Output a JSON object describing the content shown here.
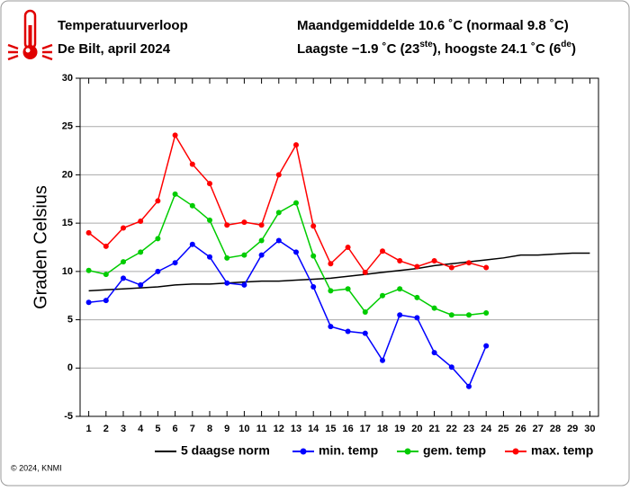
{
  "chart_data": {
    "type": "line",
    "title": "Temperatuurverloop",
    "subtitle": "De Bilt, april 2024",
    "summary_line1": "Maandgemiddelde 10.6 ˚C (normaal 9.8 ˚C)",
    "summary_line2": [
      "Laagste −1.9 ˚C (23",
      "ste",
      "), hoogste 24.1 ˚C (6",
      "de",
      ")"
    ],
    "ylabel": "Graden Celsius",
    "footer": "© 2024, KNMI",
    "x": [
      1,
      2,
      3,
      4,
      5,
      6,
      7,
      8,
      9,
      10,
      11,
      12,
      13,
      14,
      15,
      16,
      17,
      18,
      19,
      20,
      21,
      22,
      23,
      24,
      25,
      26,
      27,
      28,
      29,
      30
    ],
    "xlim": [
      0.5,
      30.5
    ],
    "xticks": [
      1,
      2,
      3,
      4,
      5,
      6,
      7,
      8,
      9,
      10,
      11,
      12,
      13,
      14,
      15,
      16,
      17,
      18,
      19,
      20,
      21,
      22,
      23,
      24,
      25,
      26,
      27,
      28,
      29,
      30
    ],
    "ylim": [
      -5,
      30
    ],
    "yticks": [
      -5,
      0,
      5,
      10,
      15,
      20,
      25,
      30
    ],
    "grid": true,
    "series": [
      {
        "name": "5 daagse norm",
        "color": "#000000",
        "markers": false,
        "values": [
          8.0,
          8.1,
          8.2,
          8.3,
          8.4,
          8.6,
          8.7,
          8.7,
          8.8,
          8.9,
          9.0,
          9.0,
          9.1,
          9.2,
          9.3,
          9.5,
          9.7,
          9.9,
          10.1,
          10.3,
          10.6,
          10.8,
          11.0,
          11.2,
          11.4,
          11.7,
          11.7,
          11.8,
          11.9,
          11.9
        ]
      },
      {
        "name": "min. temp",
        "color": "#0000ff",
        "markers": true,
        "values": [
          6.8,
          7.0,
          9.3,
          8.6,
          10.0,
          10.9,
          12.8,
          11.5,
          8.8,
          8.6,
          11.7,
          13.2,
          12.0,
          8.4,
          4.3,
          3.8,
          3.6,
          0.8,
          5.5,
          5.2,
          1.6,
          0.1,
          -1.9,
          2.3,
          null,
          null,
          null,
          null,
          null,
          null
        ]
      },
      {
        "name": "gem. temp",
        "color": "#00cc00",
        "markers": true,
        "values": [
          10.1,
          9.7,
          11.0,
          12.0,
          13.4,
          18.0,
          16.8,
          15.3,
          11.4,
          11.7,
          13.2,
          16.1,
          17.1,
          11.6,
          8.0,
          8.2,
          5.8,
          7.5,
          8.2,
          7.3,
          6.2,
          5.5,
          5.5,
          5.7,
          null,
          null,
          null,
          null,
          null,
          null
        ]
      },
      {
        "name": "max. temp",
        "color": "#ff0000",
        "markers": true,
        "values": [
          14.0,
          12.6,
          14.5,
          15.2,
          17.3,
          24.1,
          21.1,
          19.1,
          14.8,
          15.1,
          14.8,
          20.0,
          23.1,
          14.7,
          10.8,
          12.5,
          9.9,
          12.1,
          11.1,
          10.5,
          11.1,
          10.4,
          10.9,
          10.4,
          null,
          null,
          null,
          null,
          null,
          null
        ]
      }
    ]
  }
}
